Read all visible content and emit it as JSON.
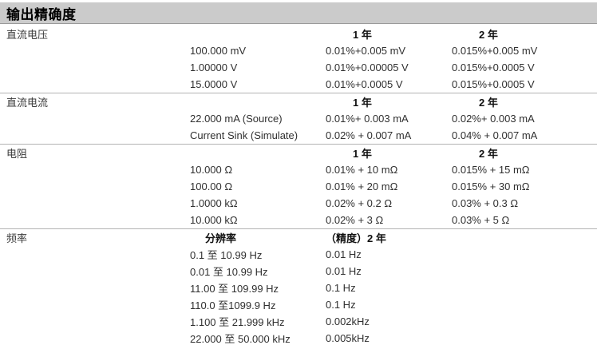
{
  "page_title": "输出精确度",
  "sections": [
    {
      "name": "直流电压",
      "col_headers": [
        "1 年",
        "2 年"
      ],
      "rows": [
        {
          "range": "100.000 mV",
          "y1": "0.01%+0.005 mV",
          "y2": "0.015%+0.005 mV"
        },
        {
          "range": "1.00000 V",
          "y1": "0.01%+0.00005 V",
          "y2": "0.015%+0.0005 V"
        },
        {
          "range": "15.0000 V",
          "y1": "0.01%+0.0005 V",
          "y2": "0.015%+0.0005 V"
        }
      ]
    },
    {
      "name": "直流电流",
      "col_headers": [
        "1 年",
        "2 年"
      ],
      "rows": [
        {
          "range": "22.000 mA (Source)",
          "y1": "0.01%+ 0.003 mA",
          "y2": "0.02%+ 0.003 mA"
        },
        {
          "range": "Current Sink (Simulate)",
          "y1": "0.02% + 0.007 mA",
          "y2": "0.04% + 0.007 mA"
        }
      ]
    },
    {
      "name": "电阻",
      "col_headers": [
        "1 年",
        "2 年"
      ],
      "rows": [
        {
          "range": "10.000 Ω",
          "y1": "0.01% + 10 mΩ",
          "y2": "0.015% + 15 mΩ"
        },
        {
          "range": "100.00 Ω",
          "y1": "0.01% + 20 mΩ",
          "y2": "0.015% + 30 mΩ"
        },
        {
          "range": "1.0000 kΩ",
          "y1": "0.02% + 0.2 Ω",
          "y2": "0.03% + 0.3 Ω"
        },
        {
          "range": "10.000 kΩ",
          "y1": "0.02% + 3 Ω",
          "y2": "0.03% + 5 Ω"
        }
      ]
    },
    {
      "name": "频率",
      "resolution_header": "分辨率",
      "accuracy_header": "（精度）2 年",
      "rows": [
        {
          "range": "0.1 至 10.99 Hz",
          "resolution": "0.01 Hz"
        },
        {
          "range": "0.01 至 10.99 Hz",
          "resolution": "0.01 Hz"
        },
        {
          "range": "11.00 至 109.99 Hz",
          "resolution": "0.1 Hz"
        },
        {
          "range": "110.0 至1099.9 Hz",
          "resolution": "0.1 Hz"
        },
        {
          "range": "1.100 至 21.999 kHz",
          "resolution": "0.002kHz"
        },
        {
          "range": "22.000 至 50.000 kHz",
          "resolution": "0.005kHz"
        }
      ]
    }
  ]
}
